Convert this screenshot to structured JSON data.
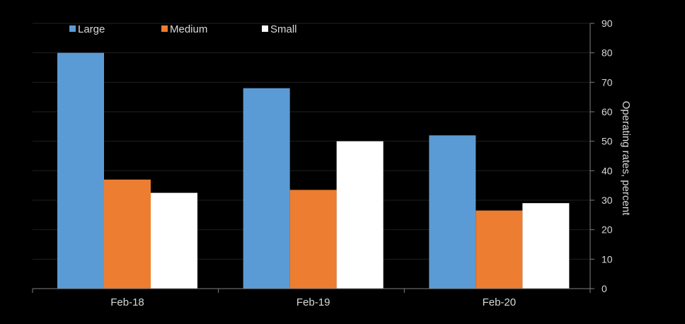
{
  "chart_data": {
    "type": "bar",
    "categories": [
      "Feb-18",
      "Feb-19",
      "Feb-20"
    ],
    "series": [
      {
        "name": "Large",
        "color": "#5b9bd5",
        "values": [
          80,
          68,
          52
        ]
      },
      {
        "name": "Medium",
        "color": "#ed7d31",
        "values": [
          37,
          33.5,
          26.5
        ]
      },
      {
        "name": "Small",
        "color": "#ffffff",
        "values": [
          32.5,
          50,
          29
        ]
      }
    ],
    "title": "",
    "xlabel": "",
    "ylabel": "Operating rates, percent",
    "ylim": [
      0,
      90
    ],
    "yticks": [
      "0",
      "10",
      "20",
      "30",
      "40",
      "50",
      "60",
      "70",
      "80",
      "90"
    ],
    "y_axis_side": "right",
    "grid": true,
    "legend_position": "top-left"
  }
}
